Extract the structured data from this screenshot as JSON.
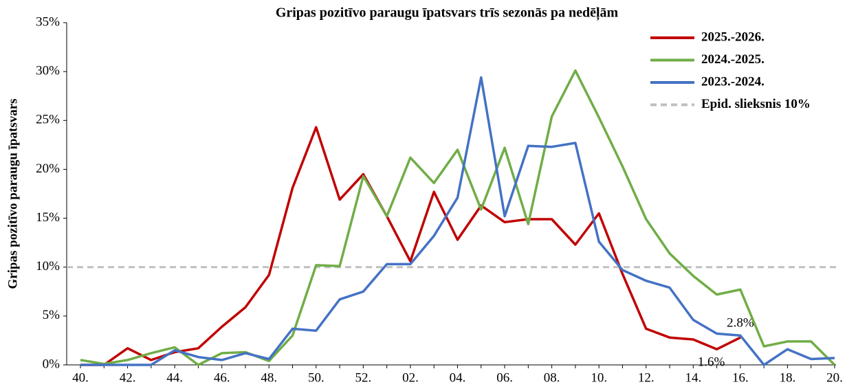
{
  "chart_data": {
    "type": "line",
    "title": "Gripas pozitīvo paraugu īpatsvars trīs sezonās pa nedēļām",
    "y_label": "Gripas pozitīvo paraugu īpatsvars",
    "categories": [
      "40.",
      null,
      "42.",
      null,
      "44.",
      null,
      "46.",
      null,
      "48.",
      null,
      "50.",
      null,
      "52.",
      null,
      "02.",
      null,
      "04.",
      null,
      "06.",
      null,
      "08.",
      null,
      "10.",
      null,
      "12.",
      null,
      "14.",
      null,
      "16.",
      null,
      "18.",
      null,
      "20."
    ],
    "series": [
      {
        "name": "2025.-2026.",
        "color": "#c00000",
        "values": [
          0,
          0,
          1.7,
          0.5,
          1.3,
          1.7,
          3.9,
          5.9,
          9.2,
          18.1,
          24.3,
          16.9,
          19.5,
          15.2,
          10.6,
          17.7,
          12.8,
          16.3,
          14.6,
          14.9,
          14.9,
          12.3,
          15.5,
          9.3,
          3.7,
          2.8,
          2.6,
          1.6,
          2.8,
          null,
          null,
          null,
          null
        ],
        "value_labels": [
          null,
          null,
          null,
          null,
          null,
          null,
          null,
          null,
          null,
          null,
          null,
          null,
          null,
          null,
          null,
          null,
          null,
          null,
          null,
          null,
          null,
          null,
          null,
          null,
          null,
          null,
          null,
          "1.6%",
          "2.8%",
          null,
          null,
          null,
          null
        ]
      },
      {
        "name": "2024.-2025.",
        "color": "#70ad47",
        "values": [
          0.5,
          0.1,
          0.5,
          1.2,
          1.8,
          0,
          1.2,
          1.3,
          0.4,
          3.0,
          10.2,
          10.1,
          19.3,
          15.2,
          21.2,
          18.6,
          22.0,
          15.9,
          22.2,
          14.4,
          25.4,
          30.1,
          25.3,
          20.3,
          14.9,
          11.4,
          9.1,
          7.2,
          7.7,
          1.9,
          2.4,
          2.4,
          0
        ]
      },
      {
        "name": "2023.-2024.",
        "color": "#4472c4",
        "values": [
          0,
          0,
          0,
          0,
          1.5,
          0.8,
          0.5,
          1.2,
          0.6,
          3.7,
          3.5,
          6.7,
          7.5,
          10.3,
          10.3,
          13.2,
          17.1,
          29.4,
          15.2,
          22.4,
          22.3,
          22.7,
          12.6,
          9.7,
          8.6,
          7.9,
          4.6,
          3.2,
          3.0,
          0,
          1.6,
          0.6,
          0.7
        ]
      }
    ],
    "threshold": {
      "name": "Epid. slieksnis 10%",
      "value": 10,
      "color": "#bfbfbf"
    },
    "ylim": [
      0,
      35
    ],
    "yticks": [
      {
        "value": 0,
        "label": "0%"
      },
      {
        "value": 5,
        "label": "5%"
      },
      {
        "value": 10,
        "label": "10%"
      },
      {
        "value": 15,
        "label": "15%"
      },
      {
        "value": 20,
        "label": "20%"
      },
      {
        "value": 25,
        "label": "25%"
      },
      {
        "value": 30,
        "label": "30%"
      },
      {
        "value": 35,
        "label": "35%"
      }
    ],
    "legend": "top-right"
  }
}
